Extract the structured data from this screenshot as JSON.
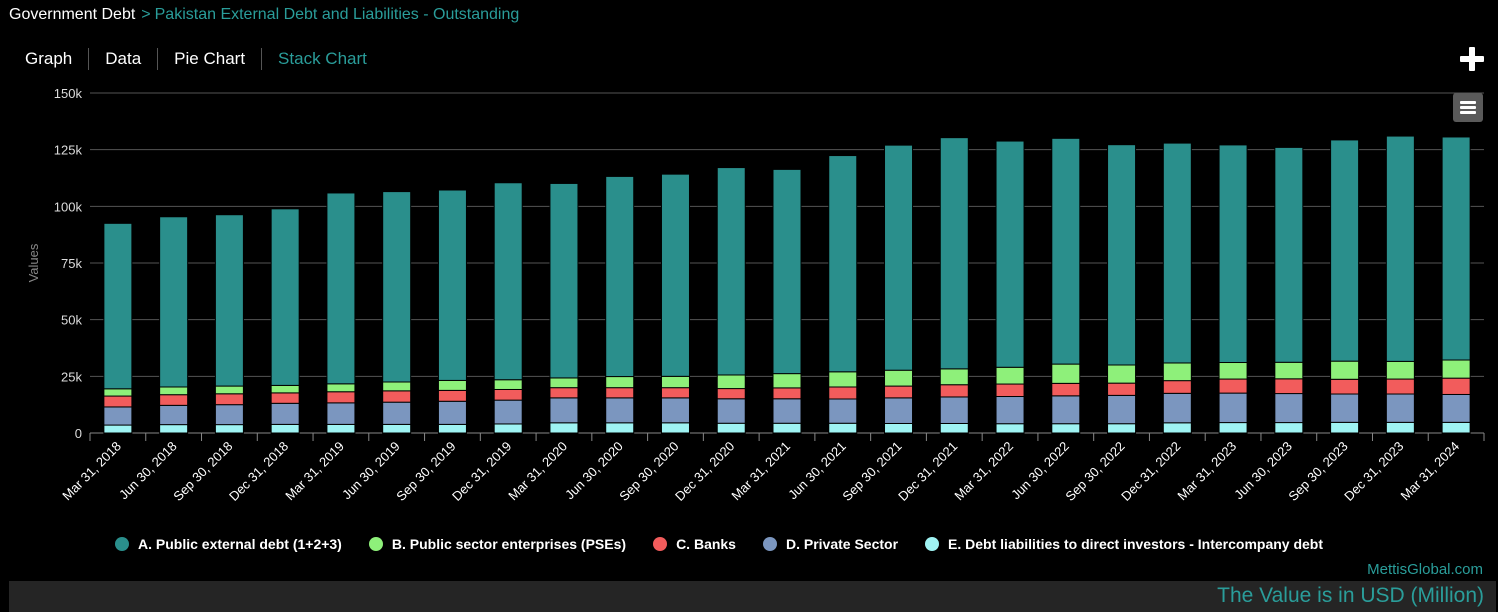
{
  "breadcrumb": {
    "root": "Government Debt",
    "separator": ">",
    "current": "Pakistan External Debt and Liabilities - Outstanding"
  },
  "tabs": [
    {
      "label": "Graph",
      "active": false
    },
    {
      "label": "Data",
      "active": false
    },
    {
      "label": "Pie Chart",
      "active": false
    },
    {
      "label": "Stack Chart",
      "active": true
    }
  ],
  "icons": {
    "add": "plus-icon",
    "menu": "hamburger-menu-icon"
  },
  "brand": "MettisGlobal.com",
  "footer_note": "The Value is in USD (Million)",
  "colors": {
    "accent": "#2a9d9a",
    "background": "#000000",
    "grid": "#555555"
  },
  "chart_data": {
    "type": "bar",
    "stacked": true,
    "ylabel": "Values",
    "ylim": [
      0,
      150000
    ],
    "yticks": [
      0,
      25000,
      50000,
      75000,
      100000,
      125000,
      150000
    ],
    "ytick_labels": [
      "0",
      "25k",
      "50k",
      "75k",
      "100k",
      "125k",
      "150k"
    ],
    "grid": true,
    "legend_position": "bottom",
    "categories": [
      "Mar 31, 2018",
      "Jun 30, 2018",
      "Sep 30, 2018",
      "Dec 31, 2018",
      "Mar 31, 2019",
      "Jun 30, 2019",
      "Sep 30, 2019",
      "Dec 31, 2019",
      "Mar 31, 2020",
      "Jun 30, 2020",
      "Sep 30, 2020",
      "Dec 31, 2020",
      "Mar 31, 2021",
      "Jun 30, 2021",
      "Sep 30, 2021",
      "Dec 31, 2021",
      "Mar 31, 2022",
      "Jun 30, 2022",
      "Sep 30, 2022",
      "Dec 31, 2022",
      "Mar 31, 2023",
      "Jun 30, 2023",
      "Sep 30, 2023",
      "Dec 31, 2023",
      "Mar 31, 2024"
    ],
    "series": [
      {
        "name": "E. Debt liabilities to direct investors - Intercompany debt",
        "color": "#9ff3f3",
        "values": [
          3500,
          3700,
          3700,
          3800,
          3800,
          3800,
          3800,
          4000,
          4500,
          4500,
          4500,
          4300,
          4300,
          4300,
          4200,
          4200,
          4100,
          4100,
          4100,
          4500,
          4600,
          4600,
          4700,
          4700,
          4700
        ]
      },
      {
        "name": "D. Private Sector",
        "color": "#7b96bf",
        "values": [
          8000,
          8500,
          8800,
          9300,
          9500,
          9800,
          10200,
          10500,
          11000,
          11000,
          11000,
          10800,
          10800,
          10700,
          11300,
          11700,
          12000,
          12300,
          12500,
          13000,
          13000,
          12800,
          12500,
          12500,
          12300
        ]
      },
      {
        "name": "C. Banks",
        "color": "#f25c5c",
        "values": [
          4800,
          4700,
          4800,
          4600,
          4900,
          5000,
          4800,
          4700,
          4500,
          4500,
          4500,
          4500,
          4800,
          5300,
          5200,
          5400,
          5500,
          5500,
          5400,
          5600,
          6200,
          6500,
          6500,
          6600,
          7200
        ]
      },
      {
        "name": "B. Public sector enterprises (PSEs)",
        "color": "#8ef07a",
        "values": [
          3200,
          3400,
          3400,
          3300,
          3500,
          3900,
          4400,
          4300,
          4300,
          4900,
          5000,
          6000,
          6300,
          6700,
          7000,
          7000,
          7400,
          8500,
          8000,
          7800,
          7300,
          7300,
          8000,
          7800,
          8000
        ]
      },
      {
        "name": "A. Public external debt (1+2+3)",
        "color": "#2a8f8c",
        "values": [
          73000,
          75100,
          75600,
          77900,
          84200,
          84000,
          84000,
          86900,
          85800,
          88300,
          89200,
          91500,
          90100,
          95400,
          99300,
          102000,
          99800,
          99600,
          97200,
          97000,
          96000,
          94800,
          97600,
          99400,
          98400
        ]
      }
    ]
  }
}
